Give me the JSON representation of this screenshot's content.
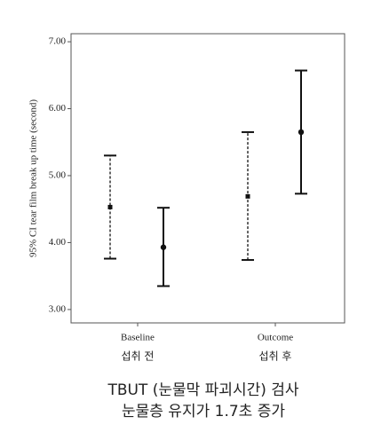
{
  "chart_data": {
    "type": "errorbar",
    "ylabel": "95% CI tear film break up time (second)",
    "categories": [
      "Baseline",
      "Outcome"
    ],
    "sublabels": [
      "섭취 전",
      "섭취 후"
    ],
    "series": [
      {
        "color": "#111111",
        "linestyle": "dashed",
        "marker": "square",
        "values": [
          4.53,
          4.69
        ],
        "lower": [
          3.76,
          3.74
        ],
        "upper": [
          5.3,
          5.65
        ]
      },
      {
        "color": "#111111",
        "linestyle": "solid",
        "marker": "circle",
        "values": [
          3.93,
          5.65
        ],
        "lower": [
          3.35,
          4.73
        ],
        "upper": [
          4.52,
          6.57
        ]
      }
    ],
    "ylim": [
      2.8,
      7.12
    ],
    "yticks": [
      {
        "value": 3,
        "label": "3.00"
      },
      {
        "value": 4,
        "label": "4.00"
      },
      {
        "value": 5,
        "label": "5.00"
      },
      {
        "value": 6,
        "label": "6.00"
      },
      {
        "value": 7,
        "label": "7.00"
      }
    ],
    "caption": [
      "TBUT (눈물막 파괴시간) 검사",
      "눈물층 유지가 1.7초 증가"
    ]
  }
}
